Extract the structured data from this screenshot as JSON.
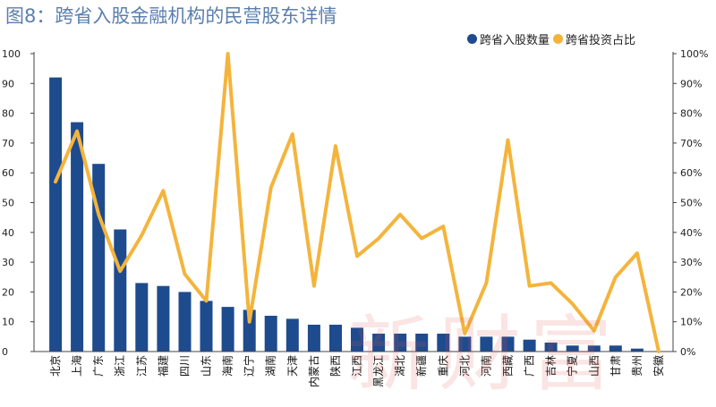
{
  "chart_data": {
    "type": "bar+line",
    "title": "图8：跨省入股金融机构的民营股东详情",
    "categories": [
      "北京",
      "上海",
      "广东",
      "浙江",
      "江苏",
      "福建",
      "四川",
      "山东",
      "海南",
      "辽宁",
      "湖南",
      "天津",
      "内蒙古",
      "陕西",
      "江西",
      "黑龙江",
      "湖北",
      "新疆",
      "重庆",
      "河北",
      "河南",
      "西藏",
      "广西",
      "吉林",
      "宁夏",
      "山西",
      "甘肃",
      "贵州",
      "安徽"
    ],
    "series": [
      {
        "name": "跨省入股数量",
        "type": "bar",
        "axis": "left",
        "values": [
          92,
          77,
          63,
          41,
          23,
          22,
          20,
          17,
          15,
          14,
          12,
          11,
          9,
          9,
          8,
          6,
          6,
          6,
          6,
          5,
          5,
          5,
          4,
          3,
          2,
          2,
          2,
          1,
          0
        ]
      },
      {
        "name": "跨省投资占比",
        "type": "line",
        "axis": "right",
        "values": [
          57,
          74,
          46,
          27,
          39,
          54,
          26,
          17,
          100,
          10,
          55,
          73,
          22,
          69,
          32,
          38,
          46,
          38,
          42,
          6,
          23,
          71,
          22,
          23,
          16,
          7,
          25,
          33,
          0
        ]
      }
    ],
    "y_left": {
      "lim": [
        0,
        100
      ],
      "ticks": [
        "0",
        "10",
        "20",
        "30",
        "40",
        "50",
        "60",
        "70",
        "80",
        "90",
        "100"
      ]
    },
    "y_right": {
      "lim": [
        0,
        100
      ],
      "ticks": [
        "0%",
        "10%",
        "20%",
        "30%",
        "40%",
        "50%",
        "60%",
        "70%",
        "80%",
        "90%",
        "100%"
      ]
    },
    "colors": {
      "bar": "#1e4b8e",
      "line": "#f4b43c",
      "title": "#5a7fae"
    },
    "legend_position": "top-right",
    "watermark": "新财富"
  }
}
